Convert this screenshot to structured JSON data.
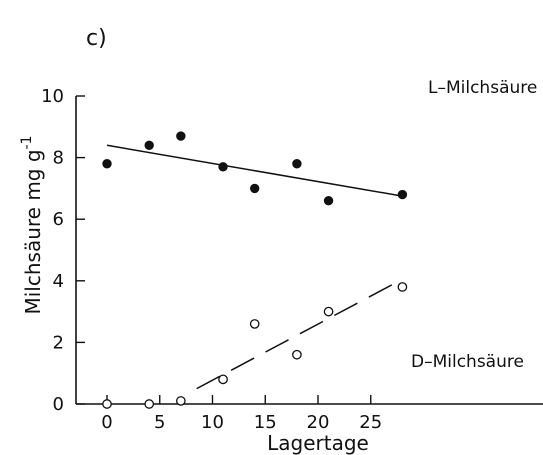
{
  "chart_data": {
    "type": "scatter",
    "panel_label": "c)",
    "xlabel": "Lagertage",
    "ylabel": "Milchsäure  mg  g",
    "ylabel_superscript": "-1",
    "xlim": [
      -1,
      27
    ],
    "ylim": [
      0,
      10
    ],
    "xticks": [
      0,
      5,
      10,
      15,
      20,
      25
    ],
    "yticks": [
      0,
      2,
      4,
      6,
      8,
      10
    ],
    "series": [
      {
        "name": "L–Milchsäure",
        "marker": "filled-circle",
        "x": [
          0,
          4,
          7,
          11,
          14,
          18,
          21,
          28
        ],
        "y": [
          7.8,
          8.4,
          8.7,
          7.7,
          7.0,
          7.8,
          6.6,
          6.8
        ],
        "fit": {
          "style": "solid",
          "x": [
            0,
            28
          ],
          "y": [
            8.4,
            6.75
          ]
        }
      },
      {
        "name": "D–Milchsäure",
        "marker": "open-circle",
        "x": [
          0,
          4,
          7,
          11,
          14,
          18,
          21,
          28
        ],
        "y": [
          0.0,
          0.0,
          0.1,
          0.8,
          2.6,
          1.6,
          3.0,
          3.8
        ],
        "fit": {
          "style": "dashed",
          "x": [
            8.5,
            28
          ],
          "y": [
            0.5,
            4.05
          ]
        }
      }
    ],
    "colors": {
      "ink": "#111111"
    }
  }
}
